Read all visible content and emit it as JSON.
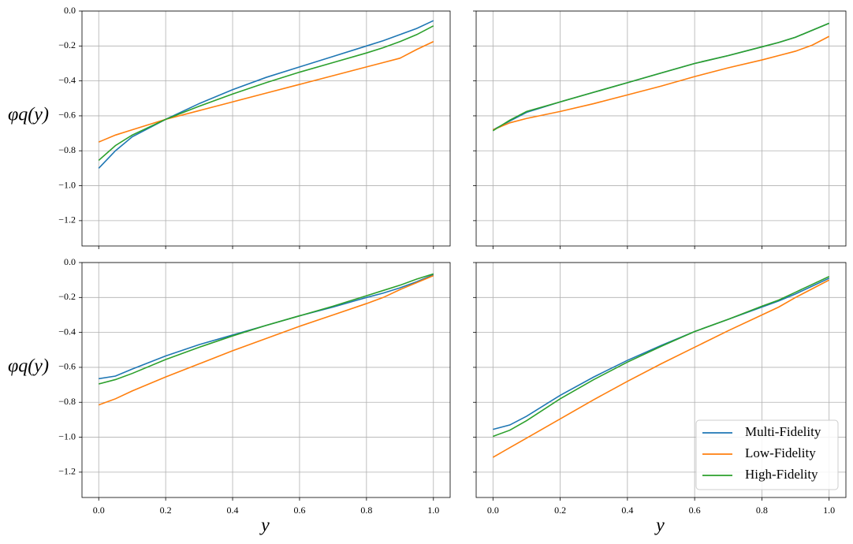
{
  "chart_data": [
    {
      "type": "line",
      "ylabel": "φq(y)",
      "xtick_labels": false,
      "ytick_labels": true,
      "grid": true,
      "xlim": [
        -0.05,
        1.05
      ],
      "ylim": [
        -1.345,
        0
      ],
      "xticks": [
        {
          "value": 0,
          "label": "0.0"
        },
        0.2,
        0.4,
        0.6,
        0.8,
        {
          "value": 1,
          "label": "1.0"
        }
      ],
      "yticks": [
        {
          "value": 0,
          "label": "0.0"
        },
        {
          "value": -0.2,
          "label": "−0.2"
        },
        {
          "value": -0.4,
          "label": "−0.4"
        },
        {
          "value": -0.6,
          "label": "−0.6"
        },
        {
          "value": -0.8,
          "label": "−0.8"
        },
        {
          "value": -1.0,
          "label": "−1.0"
        },
        {
          "value": -1.2,
          "label": "−1.2"
        }
      ],
      "x": [
        0,
        0.05,
        0.1,
        0.2,
        0.3,
        0.4,
        0.5,
        0.6,
        0.7,
        0.8,
        0.85,
        0.9,
        0.95,
        1.0
      ],
      "series": [
        {
          "color": "#1f77b4",
          "values": [
            -0.9,
            -0.8,
            -0.72,
            -0.62,
            -0.53,
            -0.45,
            -0.38,
            -0.32,
            -0.26,
            -0.2,
            -0.17,
            -0.135,
            -0.1,
            -0.055
          ]
        },
        {
          "color": "#ff7f0e",
          "values": [
            -0.75,
            -0.71,
            -0.68,
            -0.62,
            -0.57,
            -0.52,
            -0.47,
            -0.42,
            -0.37,
            -0.32,
            -0.295,
            -0.27,
            -0.22,
            -0.175
          ]
        },
        {
          "color": "#2ca02c",
          "values": [
            -0.855,
            -0.77,
            -0.71,
            -0.62,
            -0.545,
            -0.475,
            -0.41,
            -0.35,
            -0.295,
            -0.24,
            -0.21,
            -0.175,
            -0.135,
            -0.085
          ]
        }
      ]
    },
    {
      "type": "line",
      "xtick_labels": false,
      "ytick_labels": false,
      "grid": true,
      "xlim": [
        -0.05,
        1.05
      ],
      "ylim": [
        -1.345,
        0
      ],
      "xticks": [
        0,
        0.2,
        0.4,
        0.6,
        0.8,
        1
      ],
      "yticks": [
        0,
        -0.2,
        -0.4,
        -0.6,
        -0.8,
        -1.0,
        -1.2
      ],
      "x": [
        0,
        0.05,
        0.1,
        0.2,
        0.3,
        0.4,
        0.5,
        0.6,
        0.7,
        0.8,
        0.85,
        0.9,
        0.95,
        1.0
      ],
      "series": [
        {
          "color": "#1f77b4",
          "values": [
            -0.68,
            -0.63,
            -0.58,
            -0.52,
            -0.465,
            -0.41,
            -0.355,
            -0.3,
            -0.255,
            -0.205,
            -0.18,
            -0.15,
            -0.11,
            -0.07
          ]
        },
        {
          "color": "#ff7f0e",
          "values": [
            -0.68,
            -0.64,
            -0.615,
            -0.575,
            -0.53,
            -0.48,
            -0.43,
            -0.375,
            -0.325,
            -0.28,
            -0.255,
            -0.23,
            -0.195,
            -0.145
          ]
        },
        {
          "color": "#2ca02c",
          "values": [
            -0.685,
            -0.625,
            -0.575,
            -0.52,
            -0.465,
            -0.41,
            -0.355,
            -0.3,
            -0.255,
            -0.205,
            -0.18,
            -0.15,
            -0.11,
            -0.07
          ]
        }
      ]
    },
    {
      "type": "line",
      "xlabel": "y",
      "ylabel": "φq(y)",
      "xtick_labels": true,
      "ytick_labels": true,
      "grid": true,
      "xlim": [
        -0.05,
        1.05
      ],
      "ylim": [
        -1.345,
        0
      ],
      "xticks": [
        {
          "value": 0,
          "label": "0.0"
        },
        0.2,
        0.4,
        0.6,
        0.8,
        {
          "value": 1,
          "label": "1.0"
        }
      ],
      "yticks": [
        {
          "value": 0,
          "label": "0.0"
        },
        {
          "value": -0.2,
          "label": "−0.2"
        },
        {
          "value": -0.4,
          "label": "−0.4"
        },
        {
          "value": -0.6,
          "label": "−0.6"
        },
        {
          "value": -0.8,
          "label": "−0.8"
        },
        {
          "value": -1.0,
          "label": "−1.0"
        },
        {
          "value": -1.2,
          "label": "−1.2"
        }
      ],
      "x": [
        0,
        0.05,
        0.1,
        0.2,
        0.3,
        0.4,
        0.5,
        0.6,
        0.7,
        0.8,
        0.85,
        0.9,
        0.95,
        1.0
      ],
      "series": [
        {
          "color": "#1f77b4",
          "values": [
            -0.665,
            -0.65,
            -0.61,
            -0.535,
            -0.47,
            -0.415,
            -0.36,
            -0.305,
            -0.255,
            -0.2,
            -0.175,
            -0.145,
            -0.11,
            -0.07
          ]
        },
        {
          "color": "#ff7f0e",
          "values": [
            -0.815,
            -0.78,
            -0.735,
            -0.655,
            -0.58,
            -0.505,
            -0.435,
            -0.365,
            -0.3,
            -0.235,
            -0.2,
            -0.155,
            -0.115,
            -0.075
          ]
        },
        {
          "color": "#2ca02c",
          "values": [
            -0.695,
            -0.67,
            -0.635,
            -0.555,
            -0.485,
            -0.42,
            -0.36,
            -0.305,
            -0.25,
            -0.19,
            -0.16,
            -0.13,
            -0.095,
            -0.065
          ]
        }
      ]
    },
    {
      "type": "line",
      "xlabel": "y",
      "xtick_labels": true,
      "ytick_labels": false,
      "grid": true,
      "legend": "lower right",
      "xlim": [
        -0.05,
        1.05
      ],
      "ylim": [
        -1.345,
        0
      ],
      "xticks": [
        {
          "value": 0,
          "label": "0.0"
        },
        0.2,
        0.4,
        0.6,
        0.8,
        {
          "value": 1,
          "label": "1.0"
        }
      ],
      "yticks": [
        0,
        -0.2,
        -0.4,
        -0.6,
        -0.8,
        -1.0,
        -1.2
      ],
      "x": [
        0,
        0.05,
        0.1,
        0.2,
        0.3,
        0.4,
        0.5,
        0.6,
        0.7,
        0.8,
        0.85,
        0.9,
        0.95,
        1.0
      ],
      "series": [
        {
          "name": "Multi-Fidelity",
          "color": "#1f77b4",
          "values": [
            -0.955,
            -0.93,
            -0.88,
            -0.76,
            -0.655,
            -0.56,
            -0.475,
            -0.395,
            -0.325,
            -0.255,
            -0.22,
            -0.18,
            -0.135,
            -0.09
          ]
        },
        {
          "name": "Low-Fidelity",
          "color": "#ff7f0e",
          "values": [
            -1.115,
            -1.06,
            -1.005,
            -0.895,
            -0.785,
            -0.68,
            -0.58,
            -0.485,
            -0.39,
            -0.3,
            -0.255,
            -0.2,
            -0.15,
            -0.1
          ]
        },
        {
          "name": "High-Fidelity",
          "color": "#2ca02c",
          "values": [
            -0.995,
            -0.96,
            -0.905,
            -0.78,
            -0.67,
            -0.57,
            -0.48,
            -0.395,
            -0.325,
            -0.25,
            -0.215,
            -0.17,
            -0.125,
            -0.08
          ]
        }
      ]
    }
  ]
}
